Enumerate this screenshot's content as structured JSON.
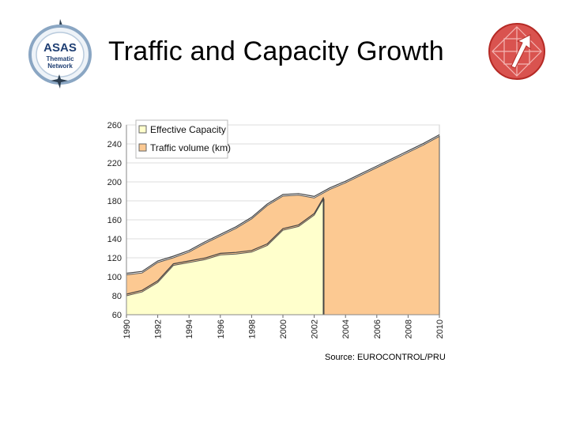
{
  "header": {
    "title": "Traffic and Capacity Growth",
    "left_logo": {
      "name": "asas-thematic-network-logo",
      "line1": "ASAS",
      "line2": "Thematic",
      "line3": "Network",
      "colors": {
        "ring": "#8aa6c3",
        "text": "#1f3f73",
        "accent": "#c0392b"
      }
    },
    "right_logo": {
      "name": "eurocontrol-arrow-logo",
      "colors": {
        "fill": "#d9534f",
        "dark": "#b52a25"
      }
    }
  },
  "source_note": "Source: EUROCONTROL/PRU",
  "chart_data": {
    "type": "area",
    "title": "",
    "xlabel": "",
    "ylabel": "",
    "ylim": [
      60,
      260
    ],
    "yticks": [
      60,
      80,
      100,
      120,
      140,
      160,
      180,
      200,
      220,
      240,
      260
    ],
    "xticks": [
      "1990",
      "1992",
      "1994",
      "1996",
      "1998",
      "2000",
      "2002",
      "2004",
      "2006",
      "2008",
      "2010"
    ],
    "xrange": [
      1990,
      2010
    ],
    "forecast_from": 2002.6,
    "grid": true,
    "legend_position": "top-left",
    "colors": {
      "capacity": "#ffffcc",
      "traffic": "#fcc992",
      "outline": "#555555",
      "grid": "#dddddd"
    },
    "series": [
      {
        "name": "Effective Capacity",
        "x": [
          1990,
          1991,
          1992,
          1993,
          1994,
          1995,
          1996,
          1997,
          1998,
          1999,
          2000,
          2001,
          2002,
          2002.6
        ],
        "values": [
          80,
          84,
          94,
          112,
          115,
          118,
          123,
          124,
          126,
          133,
          149,
          153,
          165,
          182
        ]
      },
      {
        "name": "Traffic volume (km)",
        "x": [
          1990,
          1991,
          1992,
          1993,
          1994,
          1995,
          1996,
          1997,
          1998,
          1999,
          2000,
          2001,
          2002,
          2003,
          2004,
          2005,
          2006,
          2007,
          2008,
          2009,
          2010
        ],
        "values": [
          102,
          104,
          115,
          120,
          126,
          135,
          143,
          151,
          161,
          175,
          185,
          186,
          183,
          192,
          199,
          207,
          215,
          223,
          231,
          239,
          248
        ]
      }
    ]
  }
}
